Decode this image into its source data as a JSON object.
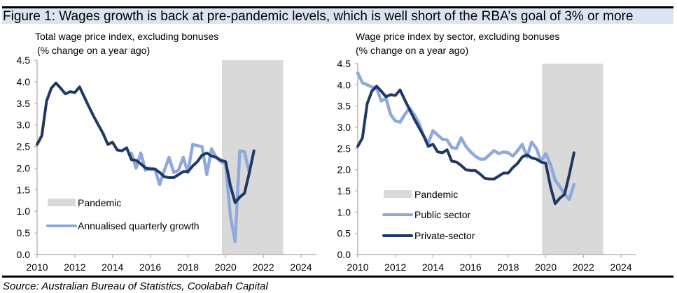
{
  "figure": {
    "title": "Figure 1: Wages growth is back at pre-pandemic levels, which is well short of the RBA’s goal of 3% or more",
    "source": "Source: Australian Bureau of Statistics, Coolabah Capital"
  },
  "colors": {
    "dark_series": "#1f3864",
    "light_series": "#8eaadb",
    "pandemic_band": "#d9d9d9",
    "axis": "#a6a6a6",
    "title_bar": "#dbe5f1"
  },
  "chart_data": [
    {
      "type": "line",
      "title": "Total wage price index, excluding bonuses",
      "subtitle": "(% change on a year ago)",
      "xlabel": "",
      "ylabel": "",
      "xlim": [
        2010,
        2025
      ],
      "ylim": [
        0,
        4.5
      ],
      "x_ticks": [
        "2010",
        "2012",
        "2014",
        "2016",
        "2018",
        "2020",
        "2022",
        "2024"
      ],
      "y_ticks": [
        "0.0",
        "0.5",
        "1.0",
        "1.5",
        "2.0",
        "2.5",
        "3.0",
        "3.5",
        "4.0",
        "4.5"
      ],
      "grid": false,
      "legend_placement": "bottom-left",
      "shaded_regions": [
        {
          "name": "Pandemic",
          "x_start": 2019.8,
          "x_end": 2023.05
        }
      ],
      "series": [
        {
          "name": "Total wage price index (y/y)",
          "legend": false,
          "color_key": "dark_series",
          "x": [
            2010.0,
            2010.25,
            2010.5,
            2010.75,
            2011.0,
            2011.25,
            2011.5,
            2011.75,
            2012.0,
            2012.25,
            2012.5,
            2012.75,
            2013.0,
            2013.25,
            2013.5,
            2013.75,
            2014.0,
            2014.25,
            2014.5,
            2014.75,
            2015.0,
            2015.25,
            2015.5,
            2015.75,
            2016.0,
            2016.25,
            2016.5,
            2016.75,
            2017.0,
            2017.25,
            2017.5,
            2017.75,
            2018.0,
            2018.25,
            2018.5,
            2018.75,
            2019.0,
            2019.25,
            2019.5,
            2019.75,
            2020.0,
            2020.25,
            2020.5,
            2020.75,
            2021.0,
            2021.25,
            2021.5
          ],
          "values": [
            2.55,
            2.75,
            3.55,
            3.85,
            3.97,
            3.85,
            3.72,
            3.77,
            3.75,
            3.88,
            3.65,
            3.42,
            3.2,
            3.0,
            2.8,
            2.55,
            2.6,
            2.42,
            2.4,
            2.47,
            2.2,
            2.18,
            2.1,
            2.0,
            1.98,
            1.98,
            1.9,
            1.8,
            1.78,
            1.78,
            1.85,
            1.92,
            1.92,
            2.05,
            2.15,
            2.3,
            2.35,
            2.28,
            2.25,
            2.18,
            2.15,
            1.6,
            1.2,
            1.33,
            1.42,
            1.88,
            2.4
          ]
        },
        {
          "name": "Annualised quarterly growth",
          "legend": true,
          "color_key": "light_series",
          "x": [
            2015.0,
            2015.25,
            2015.5,
            2015.75,
            2016.0,
            2016.25,
            2016.5,
            2016.75,
            2017.0,
            2017.25,
            2017.5,
            2017.75,
            2018.0,
            2018.25,
            2018.5,
            2018.75,
            2019.0,
            2019.25,
            2019.5,
            2019.75,
            2020.0,
            2020.25,
            2020.5,
            2020.75,
            2021.0,
            2021.25
          ],
          "values": [
            2.35,
            2.0,
            2.35,
            1.95,
            2.0,
            1.98,
            1.62,
            1.95,
            2.25,
            1.9,
            1.95,
            2.25,
            1.9,
            2.55,
            2.52,
            2.5,
            1.85,
            2.45,
            2.25,
            2.15,
            2.1,
            0.9,
            0.3,
            2.4,
            2.38,
            1.9
          ]
        }
      ]
    },
    {
      "type": "line",
      "title": "Wage price index by sector, excluding bonuses",
      "subtitle": "(% change on a year ago)",
      "xlabel": "",
      "ylabel": "",
      "xlim": [
        2010,
        2025
      ],
      "ylim": [
        0,
        4.5
      ],
      "x_ticks": [
        "2010",
        "2012",
        "2014",
        "2016",
        "2018",
        "2020",
        "2022",
        "2024"
      ],
      "y_ticks": [
        "0.0",
        "0.5",
        "1.0",
        "1.5",
        "2.0",
        "2.5",
        "3.0",
        "3.5",
        "4.0",
        "4.5"
      ],
      "grid": false,
      "legend_placement": "bottom-left",
      "shaded_regions": [
        {
          "name": "Pandemic",
          "x_start": 2019.8,
          "x_end": 2023.05
        }
      ],
      "series": [
        {
          "name": "Public sector",
          "legend": true,
          "color_key": "light_series",
          "x": [
            2010.0,
            2010.25,
            2010.5,
            2010.75,
            2011.0,
            2011.25,
            2011.5,
            2011.75,
            2012.0,
            2012.25,
            2012.5,
            2012.75,
            2013.0,
            2013.25,
            2013.5,
            2013.75,
            2014.0,
            2014.25,
            2014.5,
            2014.75,
            2015.0,
            2015.25,
            2015.5,
            2015.75,
            2016.0,
            2016.25,
            2016.5,
            2016.75,
            2017.0,
            2017.25,
            2017.5,
            2017.75,
            2018.0,
            2018.25,
            2018.5,
            2018.75,
            2019.0,
            2019.25,
            2019.5,
            2019.75,
            2020.0,
            2020.25,
            2020.5,
            2020.75,
            2021.0,
            2021.25,
            2021.5
          ],
          "values": [
            4.28,
            4.05,
            4.0,
            3.95,
            3.92,
            3.62,
            3.68,
            3.3,
            3.15,
            3.12,
            3.3,
            3.45,
            3.3,
            3.1,
            2.8,
            2.62,
            2.92,
            2.82,
            2.72,
            2.7,
            2.52,
            2.5,
            2.75,
            2.55,
            2.42,
            2.32,
            2.25,
            2.25,
            2.35,
            2.45,
            2.38,
            2.42,
            2.4,
            2.32,
            2.45,
            2.6,
            2.3,
            2.65,
            2.5,
            2.2,
            2.38,
            2.12,
            1.75,
            1.6,
            1.42,
            1.3,
            1.65
          ]
        },
        {
          "name": "Private-sector",
          "legend": true,
          "color_key": "dark_series",
          "x": [
            2010.0,
            2010.25,
            2010.5,
            2010.75,
            2011.0,
            2011.25,
            2011.5,
            2011.75,
            2012.0,
            2012.25,
            2012.5,
            2012.75,
            2013.0,
            2013.25,
            2013.5,
            2013.75,
            2014.0,
            2014.25,
            2014.5,
            2014.75,
            2015.0,
            2015.25,
            2015.5,
            2015.75,
            2016.0,
            2016.25,
            2016.5,
            2016.75,
            2017.0,
            2017.25,
            2017.5,
            2017.75,
            2018.0,
            2018.25,
            2018.5,
            2018.75,
            2019.0,
            2019.25,
            2019.5,
            2019.75,
            2020.0,
            2020.25,
            2020.5,
            2020.75,
            2021.0,
            2021.25,
            2021.5
          ],
          "values": [
            2.55,
            2.75,
            3.55,
            3.85,
            3.97,
            3.85,
            3.72,
            3.77,
            3.75,
            3.88,
            3.65,
            3.42,
            3.2,
            3.0,
            2.8,
            2.55,
            2.6,
            2.42,
            2.4,
            2.47,
            2.2,
            2.18,
            2.1,
            2.0,
            1.98,
            1.98,
            1.9,
            1.8,
            1.78,
            1.78,
            1.85,
            1.92,
            1.92,
            2.05,
            2.15,
            2.3,
            2.35,
            2.28,
            2.25,
            2.18,
            2.15,
            1.6,
            1.2,
            1.33,
            1.42,
            1.88,
            2.4
          ]
        }
      ]
    }
  ]
}
